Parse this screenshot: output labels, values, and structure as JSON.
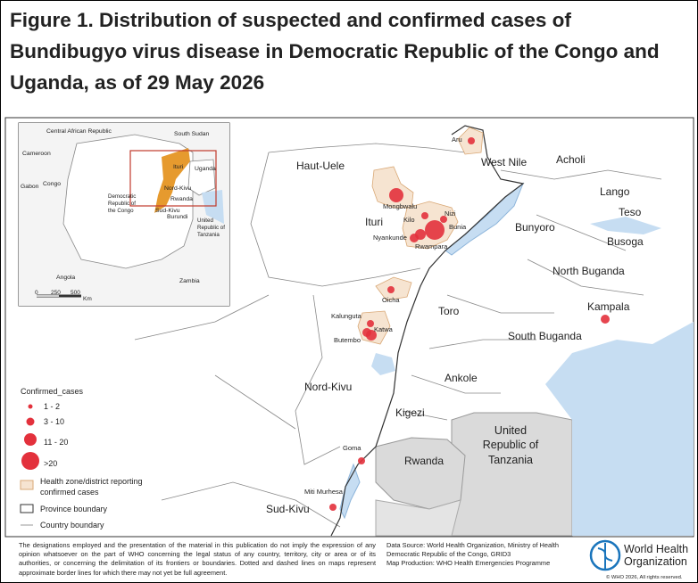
{
  "title": "Figure 1. Distribution of suspected and confirmed cases of Bundibugyo virus disease in Democratic Republic of the Congo and Uganda, as of 29 May 2026",
  "map": {
    "region_labels": [
      "Haut-Uele",
      "West Nile",
      "Acholi",
      "Lango",
      "Teso",
      "Ituri",
      "Bunyoro",
      "Busoga",
      "North Buganda",
      "Toro",
      "Kampala",
      "South Buganda",
      "Nord-Kivu",
      "Ankole",
      "Kigezi",
      "Rwanda",
      "Sud-Kivu"
    ],
    "country_label": [
      "United",
      "Republic of",
      "Tanzania"
    ],
    "place_labels": [
      "Aru",
      "Mongbwalu",
      "Kilo",
      "Nizi",
      "Bunia",
      "Nyankunde",
      "Rwampara",
      "Oicha",
      "Kalunguta",
      "Katwa",
      "Butembo",
      "Goma",
      "Miti Murhesa"
    ]
  },
  "inset": {
    "labels": [
      "Central African Republic",
      "South Sudan",
      "Cameroon",
      "Ituri",
      "Uganda",
      "Gabon",
      "Congo",
      "Nord-Kivu",
      "Rwanda",
      "Sud-Kivu",
      "Burundi",
      "Angola",
      "Zambia"
    ],
    "drc_label": [
      "Democratic",
      "Republic of",
      "the Congo"
    ],
    "tanzania_label": [
      "United",
      "Republic of",
      "Tanzania"
    ],
    "scale": [
      "0",
      "250",
      "500",
      "Km"
    ]
  },
  "legend": {
    "title": "Confirmed_cases",
    "items": [
      "1 - 2",
      "3 - 10",
      "11 - 20",
      ">20"
    ],
    "zone": [
      "Health zone/district reporting",
      "confirmed cases"
    ],
    "province": "Province boundary",
    "country": "Country boundary"
  },
  "footer": {
    "disclaimer": "The designations employed and the presentation of the material in this publication do not imply the expression of any opinion whatsoever on the part of WHO concerning the legal status of any country, territory, city or area or of its authorities, or concerning the delimitation of its frontiers or boundaries. Dotted and dashed lines on maps represent approximate border lines for which there may not yet be full agreement.",
    "source": [
      "Data Source: World Health Organization, Ministry of Health",
      "Democratic Republic of the Congo, GRID3",
      "Map Production: WHO Health Emergencies Programme"
    ],
    "who": [
      "World Health",
      "Organization"
    ],
    "copyright": "© WHO 2026, All rights reserved."
  }
}
